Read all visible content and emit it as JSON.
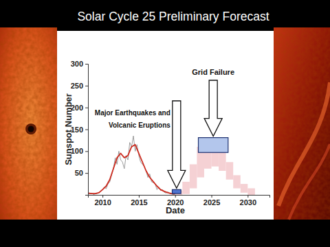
{
  "chart_data": {
    "type": "line",
    "title": "Solar Cycle 25 Preliminary Forecast",
    "x_label": "Date",
    "y_label": "Sunspot Number",
    "xlim": [
      2008,
      2033
    ],
    "ylim": [
      0,
      300
    ],
    "xticks": [
      2010,
      2015,
      2020,
      2025,
      2030
    ],
    "yticks": [
      50,
      100,
      150,
      200,
      250,
      300
    ],
    "grid": false,
    "series": [
      {
        "type": "line",
        "color": "#9a9a9a",
        "x": [
          2008,
          2008.25,
          2008.5,
          2008.75,
          2009,
          2009.25,
          2009.5,
          2009.75,
          2010,
          2010.25,
          2010.5,
          2010.75,
          2011,
          2011.25,
          2011.5,
          2011.75,
          2012,
          2012.25,
          2012.5,
          2012.75,
          2013,
          2013.25,
          2013.5,
          2013.75,
          2014,
          2014.25,
          2014.5,
          2014.75,
          2015,
          2015.25,
          2015.5,
          2015.75,
          2016,
          2016.25,
          2016.5,
          2016.75,
          2017,
          2017.25,
          2017.5,
          2017.75,
          2018,
          2018.25,
          2018.5,
          2018.75,
          2019,
          2019.25,
          2019.5,
          2019.75,
          2020,
          2020.25
        ],
        "values": [
          3,
          2,
          4,
          1,
          2,
          3,
          5,
          8,
          12,
          18,
          14,
          25,
          30,
          45,
          60,
          85,
          70,
          100,
          80,
          75,
          60,
          90,
          80,
          120,
          110,
          135,
          100,
          115,
          90,
          75,
          70,
          65,
          55,
          40,
          48,
          30,
          28,
          25,
          12,
          18,
          10,
          12,
          6,
          4,
          7,
          3,
          2,
          1,
          2,
          5
        ]
      },
      {
        "type": "line",
        "color": "#cc2a1e",
        "x": [
          2008,
          2008.5,
          2009,
          2009.5,
          2010,
          2010.5,
          2011,
          2011.5,
          2012,
          2012.5,
          2013,
          2013.5,
          2014,
          2014.5,
          2015,
          2015.5,
          2016,
          2016.5,
          2017,
          2017.5,
          2018,
          2018.5,
          2019,
          2019.5,
          2020
        ],
        "values": [
          4,
          3,
          3,
          5,
          12,
          20,
          35,
          60,
          85,
          95,
          85,
          90,
          110,
          115,
          95,
          75,
          55,
          40,
          30,
          20,
          12,
          8,
          5,
          3,
          2
        ]
      },
      {
        "type": "range",
        "color": "#f3c9cc",
        "x": [
          2020,
          2021,
          2022,
          2023,
          2024,
          2025,
          2026,
          2027,
          2028,
          2029,
          2030
        ],
        "low": [
          0,
          2,
          15,
          40,
          60,
          65,
          55,
          35,
          15,
          5,
          0
        ],
        "high": [
          10,
          30,
          70,
          110,
          130,
          120,
          100,
          75,
          45,
          25,
          15
        ]
      }
    ],
    "annotations": [
      {
        "lines": [
          "Major Earthquakes and",
          "Volcanic Eruptions"
        ],
        "x": [
          2019.6,
          2020.8
        ],
        "y": [
          3,
          12
        ],
        "color": "#4f74d0"
      },
      {
        "lines": [
          "Grid Failure"
        ],
        "x": [
          2023.2,
          2027.3
        ],
        "y": [
          97,
          131
        ],
        "color": "#b3c6ec"
      }
    ]
  }
}
